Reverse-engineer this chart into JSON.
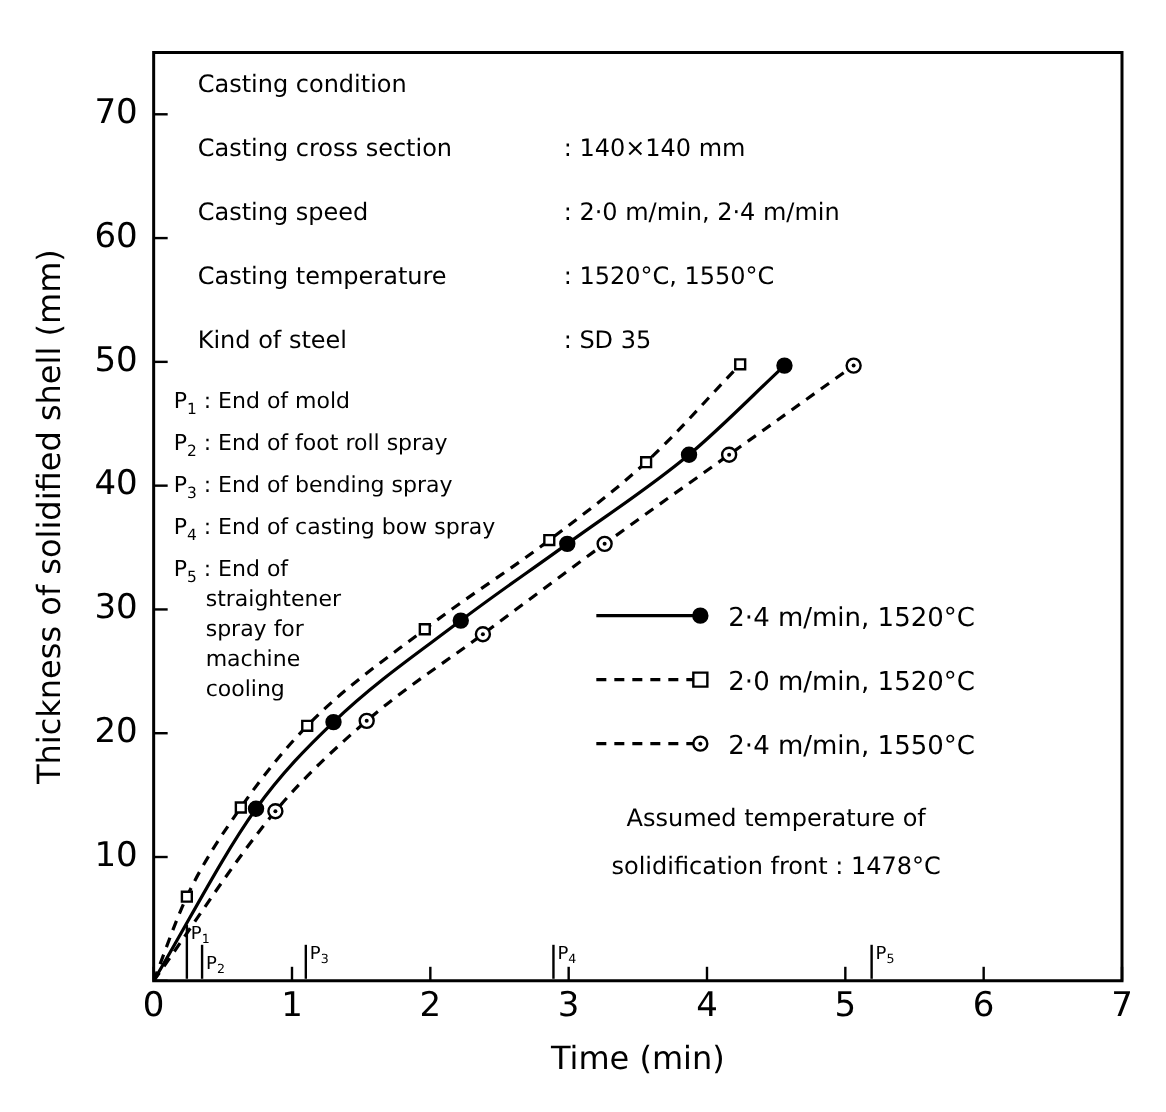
{
  "chart_data": {
    "type": "line",
    "xlabel": "Time (min)",
    "ylabel": "Thickness of solidified shell (mm)",
    "xlim": [
      0,
      7
    ],
    "ylim": [
      0,
      75
    ],
    "xticks": [
      0,
      1,
      2,
      3,
      4,
      5,
      6,
      7
    ],
    "yticks": [
      {
        "value": 0,
        "label": null
      },
      10,
      20,
      30,
      40,
      50,
      60,
      70
    ],
    "grid": false,
    "legend": "right",
    "series": [
      {
        "name": "2·4 m/min, 1520°C",
        "color": "#000000",
        "line_style": "solid",
        "marker": "circle",
        "x": [
          0,
          0.74,
          1.3,
          2.22,
          2.99,
          3.87,
          4.56
        ],
        "values": [
          0,
          13.9,
          20.9,
          29.1,
          35.3,
          42.5,
          49.7
        ]
      },
      {
        "name": "2·0 m/min, 1520°C",
        "color": "#000000",
        "line_style": "dashed",
        "marker": "square",
        "x": [
          0,
          0.24,
          0.63,
          1.11,
          1.96,
          2.86,
          3.56,
          4.24
        ],
        "values": [
          0,
          6.8,
          14.0,
          20.6,
          28.4,
          35.6,
          41.9,
          49.8
        ]
      },
      {
        "name": "2·4 m/min, 1550°C",
        "color": "#000000",
        "line_style": "dashed",
        "marker": "circle",
        "x": [
          0,
          0.88,
          1.54,
          2.38,
          3.26,
          4.16,
          5.06
        ],
        "values": [
          0,
          13.7,
          21.0,
          28.0,
          35.3,
          42.5,
          49.7
        ]
      }
    ],
    "ref_lines": [
      {
        "axis": "x",
        "value": 0.24,
        "label": "P$_{1}$"
      },
      {
        "axis": "x",
        "value": 0.35,
        "label": "P$_{2}$"
      },
      {
        "axis": "x",
        "value": 1.1,
        "label": "P$_{3}$"
      },
      {
        "axis": "x",
        "value": 2.89,
        "label": "P$_{4}$"
      },
      {
        "axis": "x",
        "value": 5.19,
        "label": "P$_{5}$"
      }
    ],
    "annotations": [
      "Casting condition",
      "Casting cross section : 140×140 mm",
      "Casting speed : 2·0 m/min, 2·4 m/min",
      "Casting temperature : 1520°C, 1550°C",
      "Kind of steel : SD 35",
      "P$_{1}$ : End of mold",
      "P$_{2}$ : End of foot roll spray",
      "P$_{3}$ : End of bending spray",
      "P$_{4}$ : End of casting bow spray",
      "P$_{5}$ : End of straightener spray for machine cooling",
      "Assumed temperature of solidification front : 1478°C"
    ]
  }
}
